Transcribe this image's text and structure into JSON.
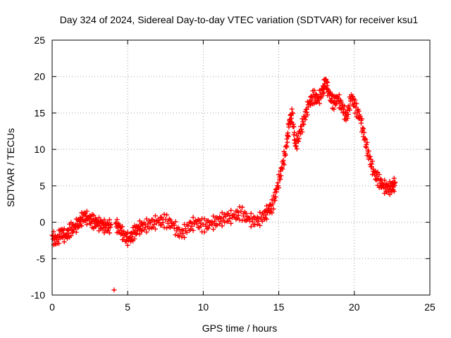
{
  "chart_data": {
    "type": "scatter",
    "title": "Day 324 of 2024, Sidereal Day-to-day VTEC variation (SDTVAR) for receiver ksu1",
    "xlabel": "GPS time / hours",
    "ylabel": "SDTVAR / TECUs",
    "xlim": [
      0,
      25
    ],
    "ylim": [
      -10,
      25
    ],
    "xticks": [
      0,
      5,
      10,
      15,
      20,
      25
    ],
    "yticks": [
      -10,
      -5,
      0,
      5,
      10,
      15,
      20,
      25
    ],
    "xtick_labels": [
      "0",
      "5",
      "10",
      "15",
      "20",
      "25"
    ],
    "ytick_labels": [
      "-10",
      "-5",
      "0",
      "5",
      "10",
      "15",
      "20",
      "25"
    ],
    "grid": true,
    "marker": "+",
    "color": "#ff0000",
    "series": [
      {
        "name": "SDTVAR ksu1",
        "x": [
          0.0,
          0.3,
          0.6,
          0.9,
          1.2,
          1.5,
          1.8,
          2.1,
          2.4,
          2.7,
          3.0,
          3.3,
          3.6,
          3.9,
          4.1,
          4.2,
          4.5,
          4.8,
          5.1,
          5.4,
          5.7,
          6.0,
          6.5,
          7.0,
          7.5,
          8.0,
          8.5,
          9.0,
          9.5,
          10.0,
          10.5,
          11.0,
          11.5,
          12.0,
          12.5,
          13.0,
          13.5,
          14.0,
          14.3,
          14.6,
          14.9,
          15.2,
          15.5,
          15.7,
          15.9,
          16.1,
          16.4,
          16.7,
          17.0,
          17.3,
          17.6,
          17.9,
          18.1,
          18.3,
          18.6,
          18.9,
          19.2,
          19.5,
          19.8,
          20.1,
          20.4,
          20.7,
          21.0,
          21.3,
          21.6,
          21.9,
          22.2,
          22.5,
          22.7
        ],
        "y": [
          -1.8,
          -2.4,
          -1.2,
          -1.8,
          -0.8,
          -0.5,
          0.2,
          1.0,
          0.7,
          0.3,
          0.0,
          -0.2,
          -0.5,
          -0.3,
          -9.3,
          -0.1,
          -0.8,
          -1.8,
          -2.2,
          -1.3,
          -0.6,
          -0.4,
          -0.1,
          0.3,
          0.4,
          -0.2,
          -1.5,
          -0.5,
          0.2,
          -0.3,
          0.0,
          0.4,
          0.8,
          1.0,
          1.5,
          0.6,
          0.3,
          1.0,
          1.8,
          2.5,
          5.0,
          7.5,
          10.5,
          14.0,
          15.0,
          10.5,
          12.5,
          14.5,
          16.5,
          17.5,
          17.0,
          18.2,
          19.5,
          18.0,
          16.5,
          17.2,
          16.0,
          14.5,
          17.5,
          15.8,
          14.5,
          11.5,
          9.0,
          7.0,
          6.0,
          5.2,
          4.8,
          5.0,
          5.5
        ]
      }
    ]
  }
}
